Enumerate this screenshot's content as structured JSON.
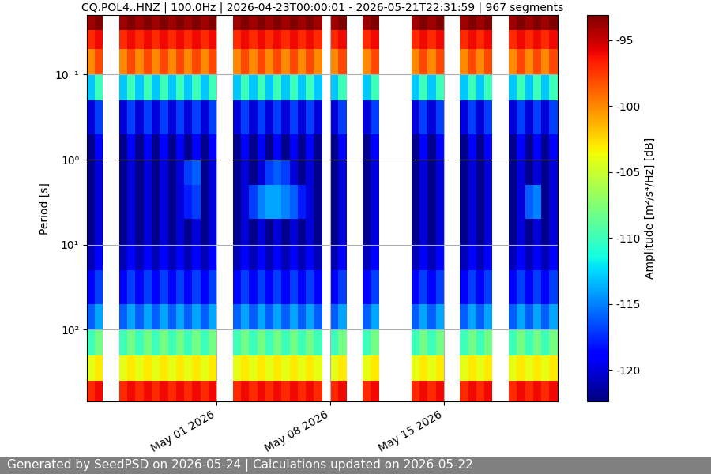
{
  "chart_data": {
    "type": "heatmap",
    "title": "CQ.POL4..HNZ | 100.0Hz | 2026-04-23T00:00:01 - 2026-05-21T22:31:59 | 967 segments",
    "y_label": "Period [s]",
    "footer": "Generated by SeedPSD on 2026-05-24 | Calculations updated on 2026-05-22",
    "log": "y",
    "grid": true,
    "xlim": [
      "2026-04-23 00:00",
      "2026-05-22 00:00"
    ],
    "xticks": [
      {
        "value": "2026-05-01 00:00",
        "label": "May 01 2026"
      },
      {
        "value": "2026-05-08 00:00",
        "label": "May 08 2026"
      },
      {
        "value": "2026-05-15 00:00",
        "label": "May 15 2026"
      }
    ],
    "ylim": [
      700,
      0.02
    ],
    "yticks": [
      {
        "value": 0.1,
        "label": "10⁻¹"
      },
      {
        "value": 1,
        "label": "10⁰"
      },
      {
        "value": 10,
        "label": "10¹"
      },
      {
        "value": 100,
        "label": "10²"
      }
    ],
    "colorbar": {
      "label": "Amplitude [m²/s⁴/Hz] [dB]",
      "lim": [
        -122.4,
        -93.1
      ],
      "ticks": [
        -120,
        -115,
        -110,
        -105,
        -100,
        -95
      ]
    },
    "x_bins": [
      "2026-04-23 00:00",
      "2026-04-23 12:00",
      "2026-04-24 00:00",
      "2026-04-24 12:00",
      "2026-04-25 00:00",
      "2026-04-25 12:00",
      "2026-04-26 00:00",
      "2026-04-26 12:00",
      "2026-04-27 00:00",
      "2026-04-27 12:00",
      "2026-04-28 00:00",
      "2026-04-28 12:00",
      "2026-04-29 00:00",
      "2026-04-29 12:00",
      "2026-04-30 00:00",
      "2026-04-30 12:00",
      "2026-05-01 00:00",
      "2026-05-01 12:00",
      "2026-05-02 00:00",
      "2026-05-02 12:00",
      "2026-05-03 00:00",
      "2026-05-03 12:00",
      "2026-05-04 00:00",
      "2026-05-04 12:00",
      "2026-05-05 00:00",
      "2026-05-05 12:00",
      "2026-05-06 00:00",
      "2026-05-06 12:00",
      "2026-05-07 00:00",
      "2026-05-07 12:00",
      "2026-05-08 00:00",
      "2026-05-08 12:00",
      "2026-05-09 00:00",
      "2026-05-09 12:00",
      "2026-05-10 00:00",
      "2026-05-10 12:00",
      "2026-05-11 00:00",
      "2026-05-11 12:00",
      "2026-05-12 00:00",
      "2026-05-12 12:00",
      "2026-05-13 00:00",
      "2026-05-13 12:00",
      "2026-05-14 00:00",
      "2026-05-14 12:00",
      "2026-05-15 00:00",
      "2026-05-15 12:00",
      "2026-05-16 00:00",
      "2026-05-16 12:00",
      "2026-05-17 00:00",
      "2026-05-17 12:00",
      "2026-05-18 00:00",
      "2026-05-18 12:00",
      "2026-05-19 00:00",
      "2026-05-19 12:00",
      "2026-05-20 00:00",
      "2026-05-20 12:00",
      "2026-05-21 00:00",
      "2026-05-21 12:00",
      "2026-05-22 00:00"
    ],
    "y_bins": [
      0.02,
      0.03,
      0.05,
      0.1,
      0.2,
      0.5,
      1,
      2,
      5,
      10,
      20,
      50,
      100,
      200,
      400,
      700
    ],
    "cells": [
      [
        -94,
        -93,
        null,
        null,
        -94,
        -93,
        -94,
        -93,
        -94,
        -93,
        -94,
        -93,
        -94,
        -93,
        -94,
        -93,
        null,
        null,
        -94,
        -93,
        -94,
        -93,
        -94,
        -93,
        -94,
        -93,
        -94,
        -93,
        -94,
        null,
        -94,
        -93,
        null,
        null,
        -94,
        -93,
        null,
        null,
        null,
        null,
        -94,
        -93,
        -94,
        -93,
        null,
        null,
        -94,
        -93,
        -94,
        -93,
        null,
        null,
        -94,
        -93,
        -94,
        -93,
        -94,
        -93
      ],
      [
        -97,
        -96,
        null,
        null,
        -97,
        -96,
        -97,
        -96,
        -97,
        -96,
        -97,
        -96,
        -97,
        -96,
        -97,
        -96,
        null,
        null,
        -97,
        -96,
        -97,
        -96,
        -97,
        -96,
        -97,
        -96,
        -97,
        -96,
        -97,
        null,
        -97,
        -96,
        null,
        null,
        -97,
        -96,
        null,
        null,
        null,
        null,
        -97,
        -96,
        -97,
        -96,
        null,
        null,
        -97,
        -96,
        -97,
        -96,
        null,
        null,
        -97,
        -96,
        -97,
        -96,
        -97,
        -96
      ],
      [
        -100,
        -98,
        null,
        null,
        -100,
        -98,
        -100,
        -98,
        -100,
        -98,
        -100,
        -98,
        -100,
        -98,
        -100,
        -98,
        null,
        null,
        -100,
        -98,
        -100,
        -98,
        -100,
        -98,
        -100,
        -98,
        -100,
        -98,
        -100,
        null,
        -100,
        -98,
        null,
        null,
        -100,
        -98,
        null,
        null,
        null,
        null,
        -100,
        -98,
        -100,
        -98,
        null,
        null,
        -100,
        -98,
        -100,
        -98,
        null,
        null,
        -100,
        -98,
        -100,
        -98,
        -100,
        -98
      ],
      [
        -113,
        -110,
        null,
        null,
        -113,
        -110,
        -113,
        -110,
        -113,
        -110,
        -113,
        -110,
        -113,
        -110,
        -113,
        -110,
        null,
        null,
        -113,
        -110,
        -113,
        -110,
        -113,
        -110,
        -113,
        -110,
        -113,
        -110,
        -113,
        null,
        -113,
        -110,
        null,
        null,
        -113,
        -110,
        null,
        null,
        null,
        null,
        -113,
        -110,
        -113,
        -110,
        null,
        null,
        -113,
        -110,
        -113,
        -110,
        null,
        null,
        -113,
        -110,
        -113,
        -110,
        -113,
        -110
      ],
      [
        -120,
        -117,
        null,
        null,
        -120,
        -117,
        -120,
        -117,
        -120,
        -117,
        -120,
        -117,
        -120,
        -117,
        -120,
        -117,
        null,
        null,
        -120,
        -117,
        -120,
        -117,
        -120,
        -117,
        -120,
        -117,
        -120,
        -117,
        -120,
        null,
        -120,
        -117,
        null,
        null,
        -120,
        -117,
        null,
        null,
        null,
        null,
        -120,
        -117,
        -120,
        -117,
        null,
        null,
        -120,
        -117,
        -120,
        -117,
        null,
        null,
        -120,
        -117,
        -120,
        -117,
        -120,
        -117
      ],
      [
        -122,
        -119,
        null,
        null,
        -122,
        -119,
        -122,
        -119,
        -122,
        -119,
        -122,
        -119,
        -122,
        -119,
        -122,
        -119,
        null,
        null,
        -122,
        -119,
        -122,
        -119,
        -122,
        -119,
        -122,
        -119,
        -122,
        -119,
        -122,
        null,
        -122,
        -119,
        null,
        null,
        -122,
        -119,
        null,
        null,
        null,
        null,
        -122,
        -119,
        -122,
        -119,
        null,
        null,
        -122,
        -119,
        -122,
        -119,
        null,
        null,
        -122,
        -119,
        -122,
        -119,
        -122,
        -119
      ],
      [
        -122,
        -120,
        null,
        null,
        -122,
        -120,
        -122,
        -120,
        -122,
        -120,
        -122,
        -120,
        -117,
        -116,
        -122,
        -120,
        null,
        null,
        -122,
        -120,
        -122,
        -120,
        -117,
        -116,
        -117,
        -120,
        -122,
        -120,
        -122,
        null,
        -122,
        -120,
        null,
        null,
        -122,
        -120,
        null,
        null,
        null,
        null,
        -122,
        -120,
        -122,
        -120,
        null,
        null,
        -122,
        -120,
        -122,
        -120,
        null,
        null,
        -122,
        -120,
        -122,
        -120,
        -122,
        -120
      ],
      [
        -122,
        -120,
        null,
        null,
        -122,
        -120,
        -122,
        -120,
        -122,
        -120,
        -122,
        -120,
        -118,
        -117,
        -122,
        -120,
        null,
        null,
        -122,
        -120,
        -117,
        -115,
        -114,
        -114,
        -115,
        -116,
        -118,
        -120,
        -122,
        null,
        -122,
        -120,
        null,
        null,
        -122,
        -120,
        null,
        null,
        null,
        null,
        -122,
        -120,
        -122,
        -120,
        null,
        null,
        -122,
        -120,
        -122,
        -120,
        null,
        null,
        -122,
        -120,
        -116,
        -115,
        -122,
        -120
      ],
      [
        -122,
        -120,
        null,
        null,
        -122,
        -120,
        -122,
        -120,
        -122,
        -120,
        -122,
        -120,
        -122,
        -120,
        -122,
        -120,
        null,
        null,
        -122,
        -120,
        -122,
        -120,
        -122,
        -120,
        -122,
        -120,
        -122,
        -120,
        -122,
        null,
        -122,
        -120,
        null,
        null,
        -122,
        -120,
        null,
        null,
        null,
        null,
        -122,
        -120,
        -122,
        -120,
        null,
        null,
        -122,
        -120,
        -122,
        -120,
        null,
        null,
        -122,
        -120,
        -122,
        -120,
        -122,
        -120
      ],
      [
        -121,
        -119,
        null,
        null,
        -121,
        -119,
        -121,
        -119,
        -121,
        -119,
        -121,
        -119,
        -121,
        -119,
        -121,
        -119,
        null,
        null,
        -121,
        -119,
        -121,
        -119,
        -121,
        -119,
        -121,
        -119,
        -121,
        -119,
        -121,
        null,
        -121,
        -119,
        null,
        null,
        -121,
        -119,
        null,
        null,
        null,
        null,
        -121,
        -119,
        -121,
        -119,
        null,
        null,
        -121,
        -119,
        -121,
        -119,
        null,
        null,
        -121,
        -119,
        -121,
        -119,
        -121,
        -119
      ],
      [
        -119,
        -117,
        null,
        null,
        -119,
        -117,
        -119,
        -117,
        -119,
        -117,
        -119,
        -117,
        -119,
        -117,
        -119,
        -117,
        null,
        null,
        -119,
        -117,
        -119,
        -117,
        -119,
        -117,
        -119,
        -117,
        -119,
        -117,
        -119,
        null,
        -119,
        -117,
        null,
        null,
        -119,
        -117,
        null,
        null,
        null,
        null,
        -119,
        -117,
        -119,
        -117,
        null,
        null,
        -119,
        -117,
        -119,
        -117,
        null,
        null,
        -119,
        -117,
        -119,
        -117,
        -119,
        -117
      ],
      [
        -116,
        -114,
        null,
        null,
        -116,
        -114,
        -116,
        -114,
        -116,
        -114,
        -116,
        -114,
        -116,
        -114,
        -116,
        -114,
        null,
        null,
        -116,
        -114,
        -116,
        -114,
        -116,
        -114,
        -116,
        -114,
        -116,
        -114,
        -116,
        null,
        -116,
        -114,
        null,
        null,
        -116,
        -114,
        null,
        null,
        null,
        null,
        -116,
        -114,
        -116,
        -114,
        null,
        null,
        -116,
        -114,
        -116,
        -114,
        null,
        null,
        -116,
        -114,
        -116,
        -114,
        -116,
        -114
      ],
      [
        -110,
        -108,
        null,
        null,
        -110,
        -108,
        -110,
        -108,
        -110,
        -108,
        -110,
        -108,
        -110,
        -108,
        -110,
        -108,
        null,
        null,
        -110,
        -108,
        -110,
        -108,
        -110,
        -108,
        -110,
        -108,
        -110,
        -108,
        -110,
        null,
        -110,
        -108,
        null,
        null,
        -110,
        -108,
        null,
        null,
        null,
        null,
        -110,
        -108,
        -110,
        -108,
        null,
        null,
        -110,
        -108,
        -110,
        -108,
        null,
        null,
        -110,
        -108,
        -110,
        -108,
        -110,
        -108
      ],
      [
        -104,
        -103,
        null,
        null,
        -104,
        -103,
        -104,
        -103,
        -104,
        -103,
        -104,
        -103,
        -104,
        -103,
        -104,
        -103,
        null,
        null,
        -104,
        -103,
        -104,
        -103,
        -104,
        -103,
        -104,
        -103,
        -104,
        -103,
        -104,
        null,
        -104,
        -103,
        null,
        null,
        -104,
        -103,
        null,
        null,
        null,
        null,
        -104,
        -103,
        -104,
        -103,
        null,
        null,
        -104,
        -103,
        -104,
        -103,
        null,
        null,
        -104,
        -103,
        -104,
        -103,
        -104,
        -103
      ],
      [
        -97,
        -96,
        null,
        null,
        -97,
        -96,
        -97,
        -96,
        -97,
        -96,
        -97,
        -96,
        -97,
        -96,
        -97,
        -96,
        null,
        null,
        -97,
        -96,
        -97,
        -96,
        -97,
        -96,
        -97,
        -96,
        -97,
        -96,
        -97,
        null,
        -97,
        -96,
        null,
        null,
        -97,
        -96,
        null,
        null,
        null,
        null,
        -97,
        -96,
        -97,
        -96,
        null,
        null,
        -97,
        -96,
        -97,
        -96,
        null,
        null,
        -97,
        -96,
        -97,
        -96,
        -97,
        -96
      ]
    ]
  }
}
